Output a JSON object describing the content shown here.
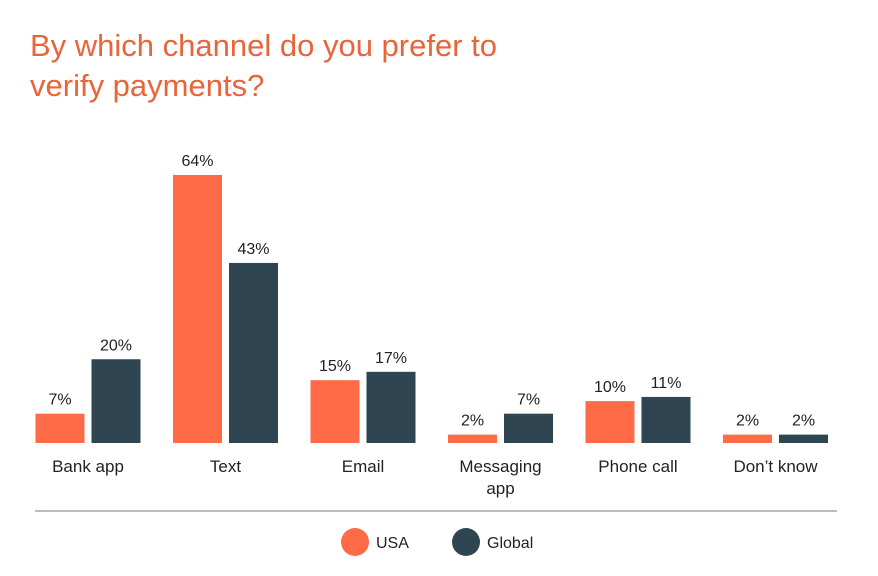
{
  "chart_data": {
    "type": "bar",
    "title": "By which channel do you prefer to verify payments?",
    "categories": [
      "Bank app",
      "Text",
      "Email",
      "Messaging app",
      "Phone call",
      "Don’t know"
    ],
    "series": [
      {
        "name": "USA",
        "color": "#ff6b47",
        "values": [
          7,
          64,
          15,
          2,
          10,
          2
        ],
        "value_labels": [
          "7%",
          "64%",
          "15%",
          "2%",
          "10%",
          "2%"
        ]
      },
      {
        "name": "Global",
        "color": "#2f4552",
        "values": [
          20,
          43,
          17,
          7,
          11,
          2
        ],
        "value_labels": [
          "20%",
          "43%",
          "17%",
          "7%",
          "11%",
          "2%"
        ]
      }
    ]
  }
}
